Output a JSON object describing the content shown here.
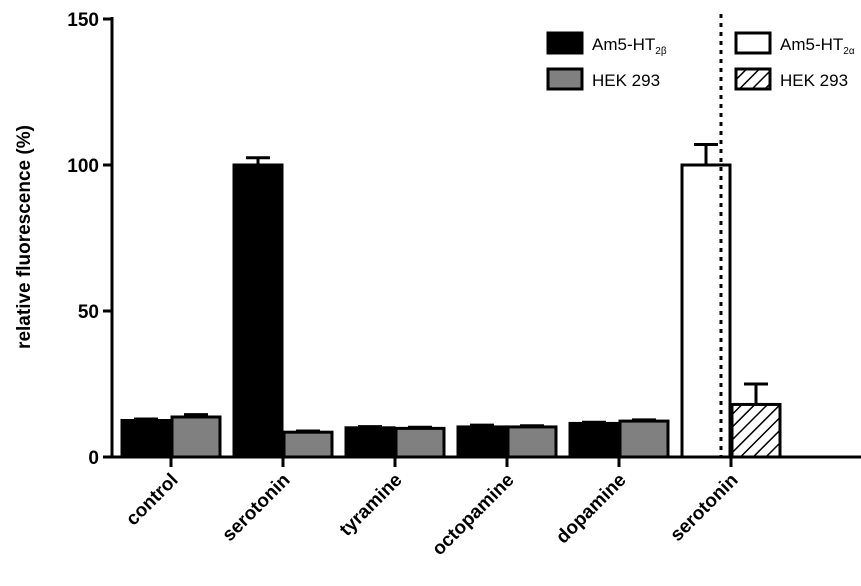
{
  "chart_data": {
    "type": "bar",
    "ylabel": "relative fluorescence (%)",
    "xlabel": "",
    "ylim": [
      0,
      150
    ],
    "yticks": [
      0,
      50,
      100,
      150
    ],
    "grid": false,
    "legend_placement": "top-right",
    "colors": {
      "Am5-HT2β": "#000000",
      "HEK 293 (left)": "#808080",
      "Am5-HT2α": "#ffffff",
      "HEK 293 (right)": "hatched"
    },
    "groups": [
      {
        "category": "control",
        "values": [
          12.5,
          13.7
        ],
        "errors": [
          0.5,
          0.8
        ]
      },
      {
        "category": "serotonin",
        "values": [
          100,
          8.5
        ],
        "errors": [
          2.5,
          0.4
        ]
      },
      {
        "category": "tyramine",
        "values": [
          10,
          9.8
        ],
        "errors": [
          0.4,
          0.4
        ]
      },
      {
        "category": "octopamine",
        "values": [
          10.3,
          10.3
        ],
        "errors": [
          0.6,
          0.4
        ]
      },
      {
        "category": "dopamine",
        "values": [
          11.5,
          12.3
        ],
        "errors": [
          0.4,
          0.4
        ]
      },
      {
        "category": "serotonin",
        "values": [
          100,
          18
        ],
        "errors": [
          7,
          7
        ]
      }
    ],
    "legend": [
      {
        "label": "Am5-HT",
        "sub": "2β",
        "style": "black"
      },
      {
        "label": "HEK 293",
        "sub": "",
        "style": "gray"
      },
      {
        "label": "Am5-HT",
        "sub": "2α",
        "style": "white"
      },
      {
        "label": "HEK 293",
        "sub": "",
        "style": "hatched"
      }
    ]
  }
}
